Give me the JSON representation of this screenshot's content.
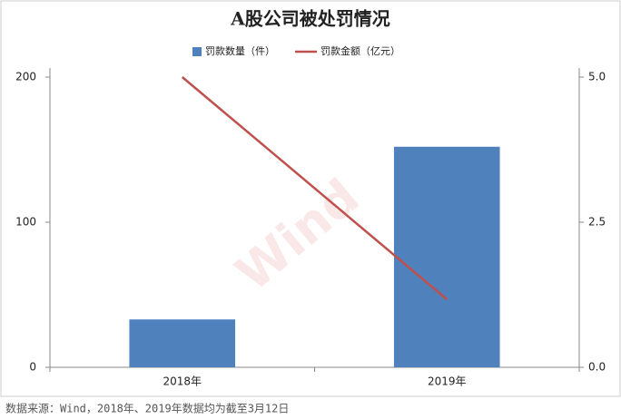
{
  "chart_data": {
    "type": "bar",
    "title": "A股公司被处罚情况",
    "categories": [
      "2018年",
      "2019年"
    ],
    "series": [
      {
        "name": "罚款数量（件）",
        "type": "bar",
        "color": "#4f81bd",
        "values": [
          33,
          152
        ]
      },
      {
        "name": "罚款金额（亿元）",
        "type": "line",
        "axis": "y2",
        "color": "#c0504d",
        "values": [
          5.0,
          1.17
        ]
      }
    ],
    "ylim": [
      0,
      200
    ],
    "yticks": [
      0,
      100,
      200
    ],
    "y2lim": [
      0,
      5
    ],
    "y2ticks": [
      {
        "value": 0,
        "label": "0.0"
      },
      2.5,
      {
        "value": 5,
        "label": "5.0"
      }
    ],
    "legend": "top",
    "watermark": "Wind",
    "source": "数据来源：Wind，2018年、2019年数据均为截至3月12日"
  }
}
